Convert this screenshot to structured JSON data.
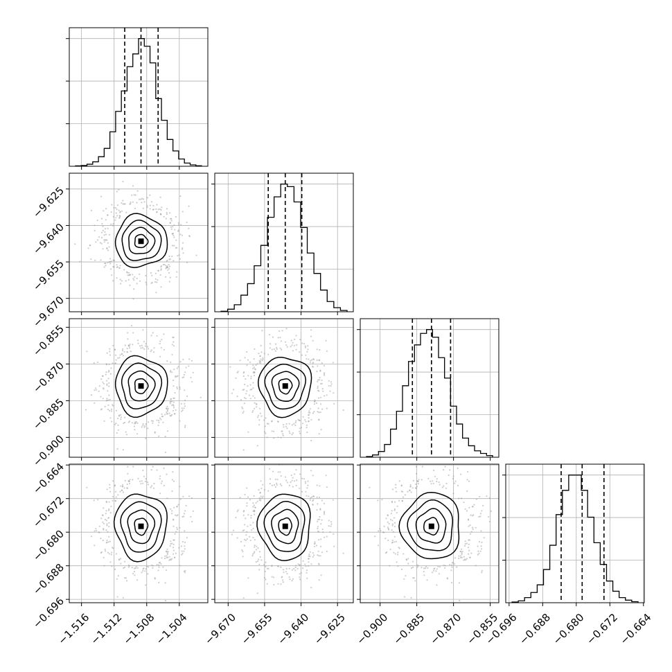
{
  "chart_data": {
    "type": "corner",
    "grid": true,
    "parameters": [
      {
        "range": [
          -1.5175,
          -1.5005
        ],
        "ticks": [
          -1.516,
          -1.512,
          -1.508,
          -1.504
        ],
        "tick_labels": [
          "−1.516",
          "−1.512",
          "−1.508",
          "−1.504"
        ],
        "quantiles": [
          -1.5107,
          -1.5087,
          -1.5066
        ],
        "hist": [
          0.003,
          0.006,
          0.016,
          0.035,
          0.075,
          0.14,
          0.27,
          0.43,
          0.59,
          0.78,
          0.88,
          1.0,
          0.94,
          0.81,
          0.53,
          0.36,
          0.21,
          0.12,
          0.057,
          0.025,
          0.011,
          0.004
        ]
      },
      {
        "range": [
          -9.6755,
          -9.6185
        ],
        "ticks": [
          -9.67,
          -9.655,
          -9.64,
          -9.625
        ],
        "tick_labels": [
          "−9.670",
          "−9.655",
          "−9.640",
          "−9.625"
        ],
        "quantiles": [
          -9.6535,
          -9.6465,
          -9.6397
        ],
        "hist": [
          0.004,
          0.02,
          0.055,
          0.13,
          0.22,
          0.36,
          0.52,
          0.74,
          0.9,
          1.0,
          0.98,
          0.86,
          0.66,
          0.46,
          0.3,
          0.17,
          0.08,
          0.032,
          0.01
        ]
      },
      {
        "range": [
          -0.9081,
          -0.8515
        ],
        "ticks": [
          -0.9,
          -0.885,
          -0.87,
          -0.855
        ],
        "tick_labels": [
          "−0.900",
          "−0.885",
          "−0.870",
          "−0.855"
        ],
        "quantiles": [
          -0.8868,
          -0.879,
          -0.8712
        ],
        "hist": [
          0.005,
          0.018,
          0.045,
          0.1,
          0.22,
          0.36,
          0.56,
          0.75,
          0.88,
          0.97,
          1.0,
          0.94,
          0.78,
          0.62,
          0.4,
          0.26,
          0.15,
          0.09,
          0.05,
          0.03,
          0.013
        ]
      },
      {
        "range": [
          -0.6968,
          -0.6638
        ],
        "ticks": [
          -0.696,
          -0.688,
          -0.68,
          -0.672,
          -0.664
        ],
        "tick_labels": [
          "−0.696",
          "−0.688",
          "−0.680",
          "−0.672",
          "−0.664"
        ],
        "quantiles": [
          -0.6836,
          -0.6786,
          -0.6734
        ],
        "hist": [
          0.005,
          0.015,
          0.04,
          0.08,
          0.14,
          0.26,
          0.45,
          0.69,
          0.88,
          1.0,
          1.0,
          0.88,
          0.67,
          0.47,
          0.3,
          0.17,
          0.09,
          0.04,
          0.02,
          0.008
        ]
      }
    ],
    "contour_levels": [
      0.118,
      0.393,
      0.675,
      0.865
    ],
    "density_peak_cells": [
      [
        0.44,
        0.51
      ],
      [
        0.46,
        0.51
      ],
      [
        0.52,
        0.52
      ],
      [
        0.46,
        0.46
      ],
      [
        0.5,
        0.5
      ],
      [
        0.5,
        0.54
      ]
    ],
    "colors": {
      "line": "#000000",
      "scatter": "#9a9a9a",
      "grid": "#b0b0b0",
      "frame": "#000000"
    }
  }
}
